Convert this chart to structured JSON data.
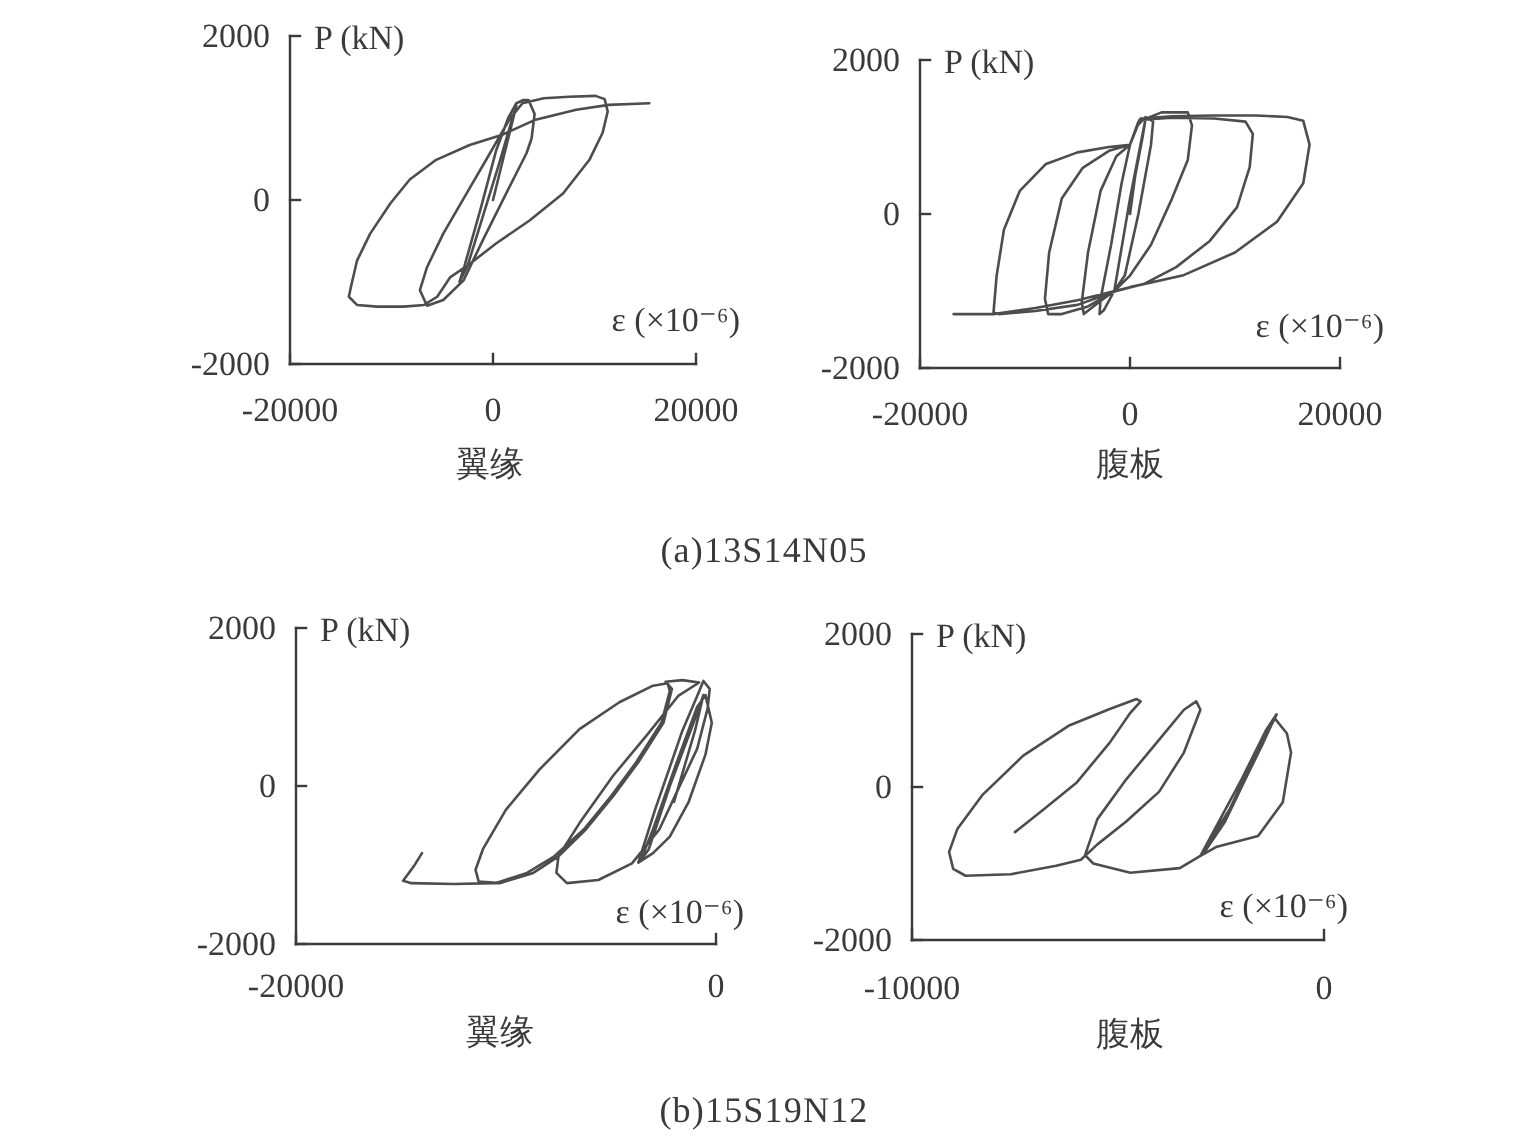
{
  "chart_data": [
    {
      "type": "line",
      "title": "翼缘",
      "xlabel": "ε (×10⁻⁶)",
      "ylabel": "P (kN)",
      "xlim": [
        -20000,
        20000
      ],
      "ylim": [
        -2000,
        2000
      ],
      "xticks": [
        -20000,
        0,
        20000
      ],
      "yticks": [
        -2000,
        0,
        2000
      ],
      "annotations": [
        "(a)13S14N05"
      ],
      "series": [
        {
          "color": "#4d4d4d",
          "x": [
            0,
            1000,
            2000,
            2300,
            1800,
            500,
            -1000,
            -2500,
            -3300,
            -2800,
            -1200,
            300,
            1500,
            2300,
            3000,
            3500,
            4100,
            3800,
            3300,
            1300,
            -1000,
            -2900,
            -4900,
            -6500,
            -7200,
            -6500,
            -4900,
            -2600,
            -300,
            1600,
            2900,
            5000,
            7500,
            10100,
            11000,
            11300,
            10800,
            9500,
            6900,
            3600,
            300,
            -2300,
            -4200,
            -5500,
            -6800,
            -8800,
            -11400,
            -13400,
            -14200,
            -14000,
            -13400,
            -12100,
            -10100,
            -8200,
            -5600,
            -2300,
            1000,
            4200,
            8200,
            11400,
            15400
          ],
          "values": [
            0,
            500,
            1000,
            1150,
            950,
            400,
            -200,
            -800,
            -1000,
            -800,
            -100,
            600,
            1000,
            1180,
            1220,
            1220,
            1050,
            750,
            570,
            80,
            -490,
            -980,
            -1220,
            -1290,
            -1100,
            -820,
            -410,
            80,
            570,
            980,
            1180,
            1240,
            1260,
            1270,
            1230,
            1080,
            820,
            490,
            80,
            -250,
            -530,
            -780,
            -940,
            -1180,
            -1280,
            -1300,
            -1300,
            -1280,
            -1180,
            -1060,
            -740,
            -410,
            -40,
            250,
            490,
            670,
            800,
            980,
            1100,
            1160,
            1180
          ]
        }
      ]
    },
    {
      "type": "line",
      "title": "腹板",
      "xlabel": "ε (×10⁻⁶)",
      "ylabel": "P (kN)",
      "xlim": [
        -20000,
        20000
      ],
      "ylim": [
        -2000,
        2000
      ],
      "xticks": [
        -20000,
        0,
        20000
      ],
      "yticks": [
        -2000,
        0,
        2000
      ],
      "series": [
        {
          "color": "#4d4d4d",
          "x": [
            0,
            500,
            1200,
            1500,
            1000,
            0,
            -1000,
            -1500,
            -2500,
            -2900,
            -2800,
            -1800,
            -800,
            0,
            700,
            1500,
            2200,
            2000,
            800,
            -500,
            -1500,
            -3000,
            -4400,
            -4600,
            -4000,
            -2800,
            -1300,
            0,
            800,
            3000,
            5500,
            5900,
            5500,
            4000,
            2000,
            0,
            -1500,
            -4000,
            -6500,
            -7800,
            -8100,
            -7700,
            -6500,
            -4500,
            -2000,
            0,
            900,
            4000,
            8000,
            11000,
            11700,
            11400,
            10200,
            7600,
            4400,
            1300,
            -1300,
            -5000,
            -9000,
            -12500,
            -13000,
            -12700,
            -12000,
            -10500,
            -8000,
            -5000,
            -2000,
            0,
            1000,
            4000,
            8000,
            12000,
            15000,
            16500,
            17100,
            16500,
            14000,
            10000,
            5000,
            0,
            -5000,
            -9000,
            -13000,
            -16800
          ],
          "values": [
            0,
            500,
            1000,
            1250,
            900,
            200,
            -600,
            -1000,
            -1250,
            -1300,
            -1100,
            -400,
            400,
            900,
            1150,
            1260,
            1200,
            900,
            0,
            -800,
            -1000,
            -1150,
            -1300,
            -1150,
            -500,
            300,
            750,
            900,
            1200,
            1320,
            1320,
            1150,
            700,
            200,
            -400,
            -800,
            -1000,
            -1200,
            -1300,
            -1300,
            -1100,
            -500,
            200,
            600,
            820,
            900,
            1220,
            1250,
            1240,
            1200,
            1040,
            610,
            90,
            -350,
            -690,
            -910,
            -1000,
            -1180,
            -1260,
            -1300,
            -1280,
            -800,
            -200,
            300,
            650,
            800,
            870,
            900,
            1240,
            1270,
            1280,
            1280,
            1260,
            1210,
            900,
            400,
            -100,
            -500,
            -800,
            -950,
            -1120,
            -1220,
            -1300,
            -1300
          ]
        }
      ]
    },
    {
      "type": "line",
      "title": "翼缘",
      "xlabel": "ε (×10⁻⁶)",
      "ylabel": "P (kN)",
      "xlim": [
        -20000,
        0
      ],
      "ylim": [
        -2000,
        2000
      ],
      "xticks": [
        -20000,
        0
      ],
      "yticks": [
        -2000,
        0,
        2000
      ],
      "annotations": [
        "(b)15S19N12"
      ],
      "series": [
        {
          "color": "#4d4d4d",
          "x": [
            -2000,
            -1000,
            -600,
            -1000,
            -2200,
            -3200,
            -3600,
            -3000,
            -1800,
            -900,
            -500,
            -200,
            -500,
            -1300,
            -2200,
            -3000,
            -3700,
            -2900,
            -1600,
            -800,
            -600,
            -300,
            -400,
            -900,
            -1800,
            -2700,
            -4000,
            -5600,
            -7100,
            -7600,
            -7500,
            -6500,
            -4900,
            -3300,
            -1800,
            -800,
            -1600,
            -2400,
            -2100,
            -2500,
            -3700,
            -4900,
            -6200,
            -7500,
            -8700,
            -10300,
            -11300,
            -11450,
            -11100,
            -10000,
            -8400,
            -6500,
            -4600,
            -3000,
            -2300,
            -2200,
            -2600,
            -3800,
            -5000,
            -6300,
            -7700,
            -9000,
            -10500,
            -12500,
            -14500,
            -14900,
            -14400,
            -14000
          ],
          "values": [
            -200,
            700,
            1150,
            850,
            0,
            -800,
            -950,
            -550,
            350,
            1000,
            1150,
            800,
            400,
            -200,
            -640,
            -850,
            -970,
            -300,
            700,
            1200,
            1330,
            1230,
            980,
            470,
            -40,
            -550,
            -980,
            -1190,
            -1230,
            -1100,
            -890,
            -470,
            130,
            640,
            1140,
            1310,
            1340,
            1320,
            1230,
            800,
            300,
            -130,
            -550,
            -890,
            -1100,
            -1230,
            -1210,
            -1060,
            -800,
            -300,
            210,
            720,
            1060,
            1270,
            1300,
            1200,
            800,
            300,
            -130,
            -550,
            -890,
            -1100,
            -1230,
            -1240,
            -1230,
            -1200,
            -1020,
            -850
          ]
        }
      ]
    },
    {
      "type": "line",
      "title": "腹板",
      "xlabel": "ε (×10⁻⁶)",
      "ylabel": "P (kN)",
      "xlim": [
        -10000,
        0
      ],
      "ylim": [
        -2000,
        2000
      ],
      "xticks": [
        -10000,
        0
      ],
      "yticks": [
        -2000,
        0,
        2000
      ],
      "series": [
        {
          "color": "#4d4d4d",
          "x": [
            -2000,
            -1500,
            -1200,
            -1500,
            -2300,
            -3000,
            -2700,
            -2000,
            -1400,
            -1150,
            -1600,
            -2400,
            -2900,
            -2500,
            -1700,
            -1200,
            -900,
            -800,
            -1000,
            -1600,
            -2600,
            -3000,
            -3500,
            -4700,
            -5600,
            -5800,
            -5500,
            -4800,
            -4000,
            -3400,
            -3100,
            -3000,
            -3400,
            -4000,
            -4800,
            -5500,
            -5900,
            -6500,
            -7600,
            -8700,
            -9000,
            -9100,
            -8900,
            -8300,
            -7300,
            -6200,
            -5200,
            -4550,
            -4450,
            -4700,
            -5200,
            -6000,
            -6800,
            -7500
          ],
          "values": [
            0,
            550,
            900,
            600,
            -300,
            -900,
            -600,
            100,
            750,
            950,
            450,
            -450,
            -850,
            -400,
            400,
            900,
            700,
            450,
            -200,
            -640,
            -780,
            -900,
            -1060,
            -1120,
            -1000,
            -890,
            -420,
            100,
            620,
            1010,
            1120,
            1010,
            450,
            -60,
            -450,
            -750,
            -950,
            -1030,
            -1140,
            -1160,
            -1070,
            -850,
            -550,
            -110,
            410,
            800,
            1020,
            1150,
            1120,
            970,
            580,
            60,
            -290,
            -590
          ]
        }
      ]
    }
  ]
}
